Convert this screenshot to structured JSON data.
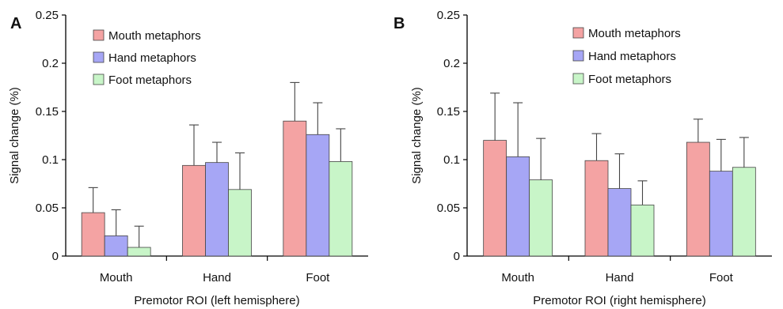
{
  "chart_data": [
    {
      "type": "bar",
      "panel_label": "A",
      "title": "",
      "xlabel": "Premotor ROI (left hemisphere)",
      "ylabel": "Signal change (%)",
      "ylim": [
        0,
        0.25
      ],
      "yticks": [
        "0",
        "0.05",
        "0.1",
        "0.15",
        "0.2",
        "0.25"
      ],
      "categories": [
        "Mouth",
        "Hand",
        "Foot"
      ],
      "legend_position": "top-left",
      "grid": false,
      "series": [
        {
          "name": "Mouth metaphors",
          "color": "#f4a3a3",
          "values": [
            0.045,
            0.094,
            0.14
          ],
          "errors": [
            0.026,
            0.042,
            0.04
          ]
        },
        {
          "name": "Hand metaphors",
          "color": "#a6a6f5",
          "values": [
            0.021,
            0.097,
            0.126
          ],
          "errors": [
            0.027,
            0.021,
            0.033
          ]
        },
        {
          "name": "Foot metaphors",
          "color": "#c8f5c8",
          "values": [
            0.009,
            0.069,
            0.098
          ],
          "errors": [
            0.022,
            0.038,
            0.034
          ]
        }
      ]
    },
    {
      "type": "bar",
      "panel_label": "B",
      "title": "",
      "xlabel": "Premotor ROI (right hemisphere)",
      "ylabel": "Signal change (%)",
      "ylim": [
        0,
        0.25
      ],
      "yticks": [
        "0",
        "0.05",
        "0.1",
        "0.15",
        "0.2",
        "0.25"
      ],
      "categories": [
        "Mouth",
        "Hand",
        "Foot"
      ],
      "legend_position": "top-right",
      "grid": false,
      "series": [
        {
          "name": "Mouth metaphors",
          "color": "#f4a3a3",
          "values": [
            0.12,
            0.099,
            0.118
          ],
          "errors": [
            0.049,
            0.028,
            0.024
          ]
        },
        {
          "name": "Hand metaphors",
          "color": "#a6a6f5",
          "values": [
            0.103,
            0.07,
            0.088
          ],
          "errors": [
            0.056,
            0.036,
            0.033
          ]
        },
        {
          "name": "Foot metaphors",
          "color": "#c8f5c8",
          "values": [
            0.079,
            0.053,
            0.092
          ],
          "errors": [
            0.043,
            0.025,
            0.031
          ]
        }
      ]
    }
  ]
}
